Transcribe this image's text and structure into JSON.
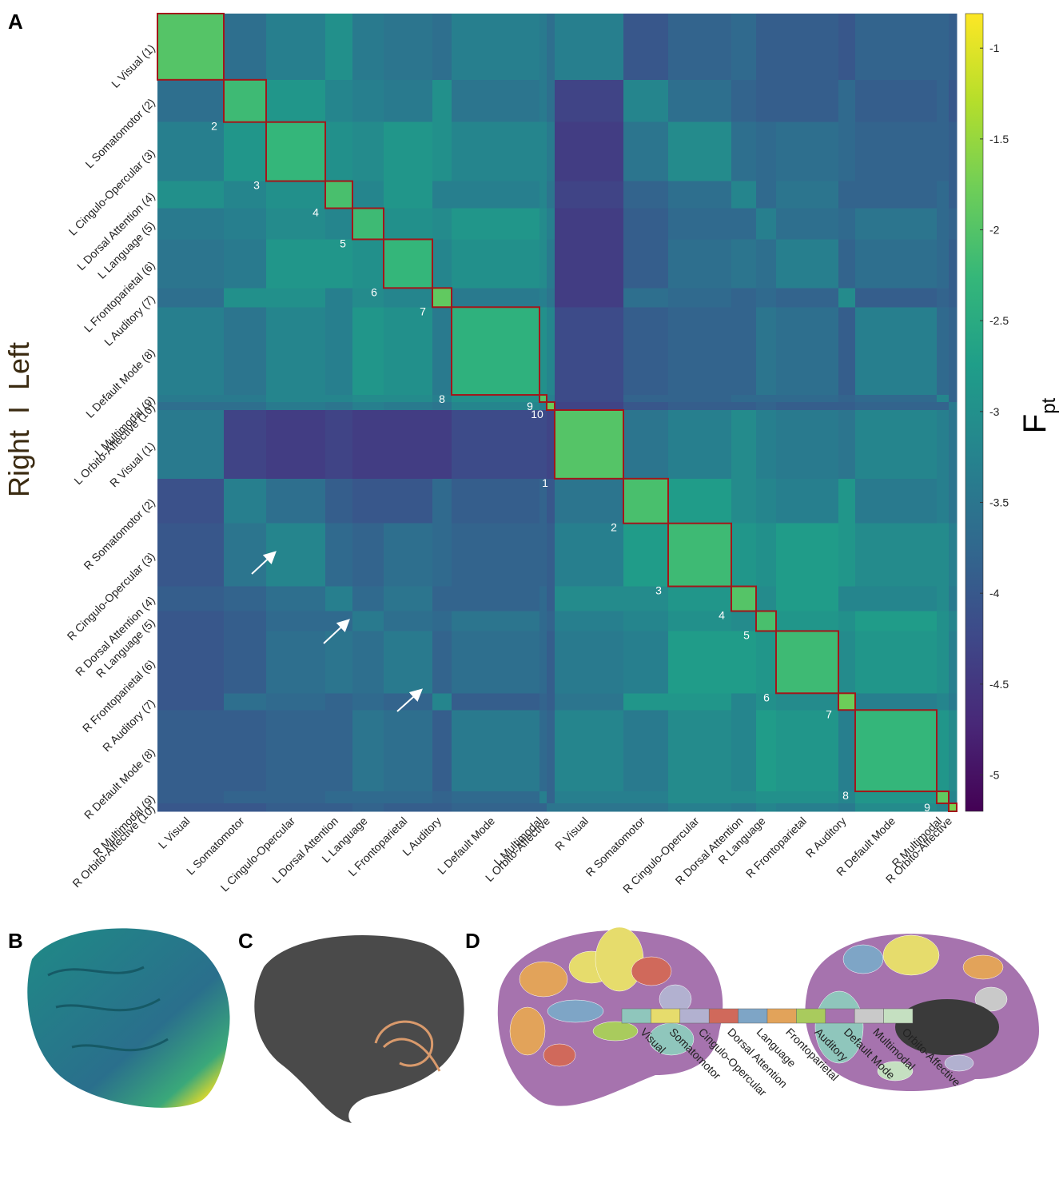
{
  "panel_labels": [
    "A",
    "B",
    "C",
    "D"
  ],
  "chart_data": {
    "type": "heatmap",
    "y_label": "Right  I  Left",
    "categories": [
      "L Visual",
      "L Somatomotor",
      "L Cingulo-Opercular",
      "L Dorsal Attention",
      "L Language",
      "L Frontoparietal",
      "L Auditory",
      "L Default Mode",
      "L Multimodal",
      "L Orbito-Affective",
      "R Visual",
      "R Somatomotor",
      "R Cingulo-Opercular",
      "R Dorsal Attention",
      "R Language",
      "R Frontoparietal",
      "R Auditory",
      "R Default Mode",
      "R Multimodal",
      "R Orbito-Affective"
    ],
    "row_labels": [
      "L Visual (1)",
      "L Somatomotor (2)",
      "L Cingulo-Opercular (3)",
      "L Dorsal Attention (4)",
      "L Language (5)",
      "L Frontoparietal (6)",
      "L Auditory (7)",
      "L Default Mode (8)",
      "L Multimodal (9)",
      "L Orbito-Affective (10)",
      "R Visual (1)",
      "R Somatomotor (2)",
      "R Cingulo-Opercular (3)",
      "R Dorsal Attention (4)",
      "R Language (5)",
      "R Frontoparietal (6)",
      "R Auditory (7)",
      "R Default Mode (8)",
      "R Multimodal (9)",
      "R Orbito-Affective (10)"
    ],
    "block_numbers": [
      null,
      2,
      3,
      4,
      5,
      6,
      7,
      8,
      9,
      10,
      1,
      2,
      3,
      4,
      5,
      6,
      7,
      8,
      9,
      null
    ],
    "z": [
      [
        -2.0,
        -3.6,
        -3.3,
        -3.0,
        -3.4,
        -3.5,
        -3.6,
        -3.3,
        -3.4,
        -3.6,
        -3.3,
        -4.0,
        -3.8,
        -3.7,
        -3.9,
        -3.9,
        -4.0,
        -3.8,
        -3.8,
        -3.9
      ],
      [
        -3.6,
        -2.2,
        -2.9,
        -3.2,
        -3.3,
        -3.4,
        -3.0,
        -3.5,
        -3.4,
        -3.6,
        -4.3,
        -3.2,
        -3.6,
        -3.8,
        -3.9,
        -3.9,
        -3.7,
        -3.9,
        -3.8,
        -4.0
      ],
      [
        -3.3,
        -2.9,
        -2.3,
        -3.0,
        -3.1,
        -2.9,
        -3.0,
        -3.2,
        -3.2,
        -3.4,
        -4.4,
        -3.5,
        -3.1,
        -3.6,
        -3.7,
        -3.6,
        -3.7,
        -3.8,
        -3.8,
        -3.9
      ],
      [
        -3.0,
        -3.2,
        -3.0,
        -2.1,
        -3.2,
        -2.9,
        -3.3,
        -3.3,
        -3.2,
        -3.5,
        -4.3,
        -3.8,
        -3.6,
        -3.2,
        -3.7,
        -3.5,
        -3.8,
        -3.8,
        -3.7,
        -3.9
      ],
      [
        -3.4,
        -3.3,
        -3.1,
        -3.2,
        -2.2,
        -3.0,
        -3.1,
        -2.9,
        -3.1,
        -3.3,
        -4.4,
        -3.9,
        -3.7,
        -3.7,
        -3.3,
        -3.6,
        -3.7,
        -3.5,
        -3.7,
        -3.8
      ],
      [
        -3.5,
        -3.4,
        -2.9,
        -2.9,
        -3.0,
        -2.3,
        -3.2,
        -3.0,
        -3.1,
        -3.4,
        -4.4,
        -3.9,
        -3.6,
        -3.5,
        -3.6,
        -3.3,
        -3.8,
        -3.6,
        -3.7,
        -3.9
      ],
      [
        -3.6,
        -3.0,
        -3.0,
        -3.3,
        -3.1,
        -3.2,
        -1.9,
        -3.4,
        -3.3,
        -3.5,
        -4.4,
        -3.6,
        -3.7,
        -3.8,
        -3.7,
        -3.8,
        -3.1,
        -3.9,
        -3.8,
        -3.9
      ],
      [
        -3.3,
        -3.5,
        -3.2,
        -3.3,
        -2.9,
        -3.0,
        -3.4,
        -2.4,
        -3.0,
        -3.2,
        -4.2,
        -3.9,
        -3.8,
        -3.8,
        -3.5,
        -3.6,
        -3.9,
        -3.3,
        -3.7,
        -3.8
      ],
      [
        -3.4,
        -3.4,
        -3.2,
        -3.2,
        -3.1,
        -3.1,
        -3.3,
        -3.0,
        -2.0,
        -3.3,
        -4.2,
        -3.8,
        -3.8,
        -3.7,
        -3.7,
        -3.7,
        -3.8,
        -3.7,
        -3.2,
        -3.8
      ],
      [
        -3.6,
        -3.6,
        -3.4,
        -3.5,
        -3.3,
        -3.4,
        -3.5,
        -3.2,
        -3.3,
        -1.8,
        -4.3,
        -4.0,
        -3.9,
        -3.9,
        -3.8,
        -3.9,
        -3.9,
        -3.8,
        -3.8,
        -3.4
      ],
      [
        -3.4,
        -4.3,
        -4.4,
        -4.3,
        -4.4,
        -4.4,
        -4.4,
        -4.2,
        -4.2,
        -4.3,
        -2.0,
        -3.5,
        -3.3,
        -3.1,
        -3.3,
        -3.4,
        -3.5,
        -3.2,
        -3.3,
        -3.5
      ],
      [
        -4.1,
        -3.3,
        -3.6,
        -3.9,
        -4.0,
        -4.0,
        -3.7,
        -3.9,
        -3.8,
        -4.0,
        -3.5,
        -2.1,
        -2.8,
        -3.1,
        -3.2,
        -3.3,
        -2.9,
        -3.4,
        -3.3,
        -3.5
      ],
      [
        -4.0,
        -3.5,
        -3.2,
        -3.7,
        -3.8,
        -3.6,
        -3.7,
        -3.8,
        -3.8,
        -3.9,
        -3.3,
        -2.8,
        -2.2,
        -2.9,
        -3.0,
        -2.8,
        -2.9,
        -3.1,
        -3.1,
        -3.3
      ],
      [
        -3.9,
        -3.8,
        -3.6,
        -3.3,
        -3.7,
        -3.5,
        -3.8,
        -3.8,
        -3.7,
        -3.9,
        -3.1,
        -3.1,
        -2.9,
        -2.0,
        -3.1,
        -2.8,
        -3.2,
        -3.2,
        -3.1,
        -3.4
      ],
      [
        -4.0,
        -3.9,
        -3.7,
        -3.7,
        -3.4,
        -3.6,
        -3.7,
        -3.5,
        -3.7,
        -3.8,
        -3.3,
        -3.2,
        -3.0,
        -3.1,
        -2.1,
        -2.9,
        -3.0,
        -2.8,
        -3.0,
        -3.2
      ],
      [
        -4.0,
        -3.9,
        -3.6,
        -3.5,
        -3.6,
        -3.4,
        -3.8,
        -3.6,
        -3.7,
        -3.9,
        -3.4,
        -3.3,
        -2.8,
        -2.8,
        -2.9,
        -2.2,
        -3.1,
        -2.9,
        -3.0,
        -3.3
      ],
      [
        -4.0,
        -3.6,
        -3.7,
        -3.8,
        -3.7,
        -3.8,
        -3.2,
        -3.9,
        -3.8,
        -3.9,
        -3.5,
        -2.9,
        -2.9,
        -3.2,
        -3.0,
        -3.1,
        -1.8,
        -3.3,
        -3.2,
        -3.4
      ],
      [
        -3.9,
        -3.9,
        -3.8,
        -3.8,
        -3.5,
        -3.6,
        -3.9,
        -3.4,
        -3.7,
        -3.8,
        -3.2,
        -3.4,
        -3.1,
        -3.2,
        -2.8,
        -2.9,
        -3.3,
        -2.3,
        -2.9,
        -3.1
      ],
      [
        -3.9,
        -3.8,
        -3.8,
        -3.7,
        -3.7,
        -3.7,
        -3.8,
        -3.7,
        -3.3,
        -3.8,
        -3.3,
        -3.3,
        -3.1,
        -3.1,
        -3.0,
        -3.0,
        -3.2,
        -2.9,
        -1.9,
        -3.2
      ],
      [
        -4.0,
        -4.0,
        -3.9,
        -3.9,
        -3.8,
        -3.9,
        -3.9,
        -3.8,
        -3.8,
        -3.5,
        -3.5,
        -3.5,
        -3.3,
        -3.4,
        -3.2,
        -3.3,
        -3.4,
        -3.1,
        -3.2,
        -1.7
      ]
    ],
    "zlim": [
      -5.2,
      -0.81
    ],
    "zticks": [
      -1,
      -1.5,
      -2,
      -2.5,
      -3,
      -3.5,
      -4,
      -4.5,
      -5
    ],
    "colorbar_label": "F",
    "colorbar_label_sub": "pt",
    "box_color": "#a3161a"
  },
  "atlas_legend": {
    "names": [
      "Visual",
      "Somatomotor",
      "Cingulo-Opercular",
      "Dorsal Attention",
      "Language",
      "Frontoparietal",
      "Auditory",
      "Default Mode",
      "Multimodal",
      "Orbito-Affective"
    ],
    "colors": [
      "#8fc6bc",
      "#e6dc6c",
      "#b2b1d0",
      "#d0695b",
      "#7ea5c6",
      "#e2a35a",
      "#a9cb5d",
      "#a673ae",
      "#c9c9c9",
      "#c5e0c1"
    ]
  }
}
